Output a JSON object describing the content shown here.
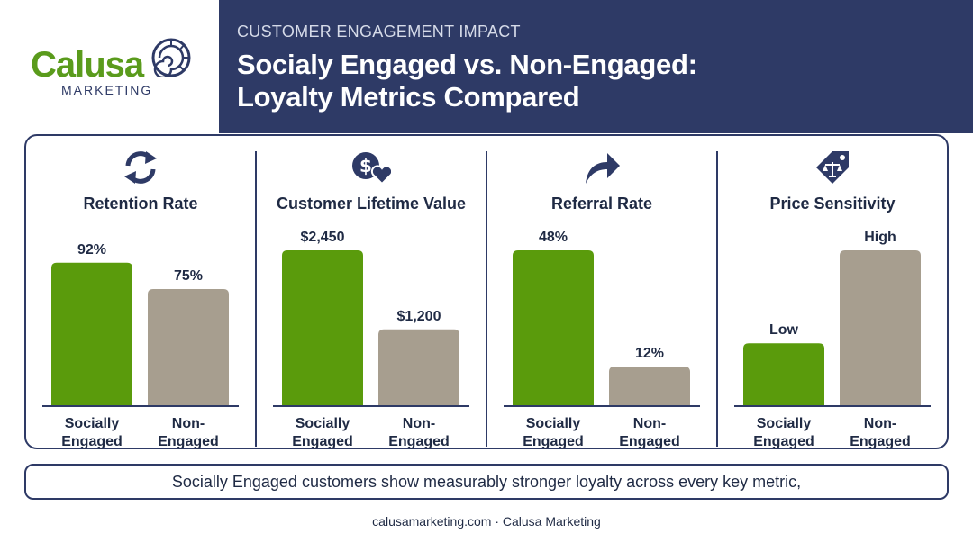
{
  "brand": {
    "name": "Calusa",
    "sub": "MARKETING"
  },
  "header": {
    "kicker": "CUSTOMER ENGAGEMENT IMPACT",
    "title_line1": "Socialy Engaged vs. Non-Engaged:",
    "title_line2": "Loyalty Metrics Compared"
  },
  "colors": {
    "engaged": "#5a9b0c",
    "non_engaged": "#a79e8f",
    "navy": "#2e3a66"
  },
  "chart_data": [
    {
      "type": "bar",
      "title": "Retention Rate",
      "icon": "refresh-icon",
      "categories": [
        "Socially Engaged",
        "Non-Engaged"
      ],
      "values": [
        92,
        75
      ],
      "labels": [
        "92%",
        "75%"
      ],
      "ylim": [
        0,
        100
      ]
    },
    {
      "type": "bar",
      "title": "Customer Lifetime Value",
      "icon": "dollar-heart-icon",
      "categories": [
        "Socially Engaged",
        "Non-Engaged"
      ],
      "values": [
        2450,
        1200
      ],
      "labels": [
        "$2,450",
        "$1,200"
      ],
      "ylim": [
        0,
        2450
      ]
    },
    {
      "type": "bar",
      "title": "Referral Rate",
      "icon": "share-arrow-icon",
      "categories": [
        "Socially Engaged",
        "Non-Engaged"
      ],
      "values": [
        48,
        12
      ],
      "labels": [
        "48%",
        "12%"
      ],
      "ylim": [
        0,
        48
      ]
    },
    {
      "type": "bar",
      "title": "Price Sensitivity",
      "icon": "price-tag-scale-icon",
      "categories": [
        "Socially Engaged",
        "Non-Engaged"
      ],
      "values": [
        0.4,
        1
      ],
      "labels": [
        "Low",
        "High"
      ],
      "ylim": [
        0,
        1
      ]
    }
  ],
  "summary": "Socially Engaged customers show measurably stronger loyalty across every key metric,",
  "footer": "calusamarketing.com · Calusa Marketing"
}
